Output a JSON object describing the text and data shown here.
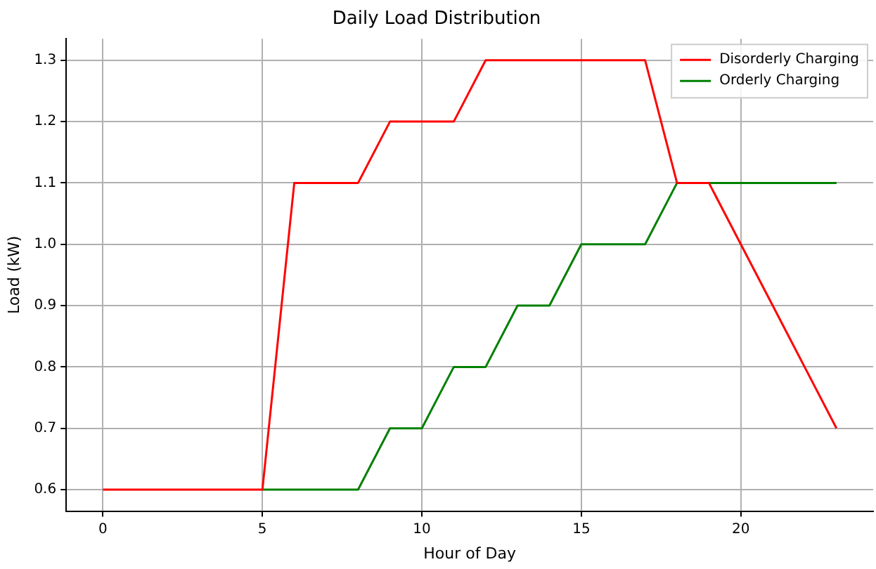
{
  "chart_data": {
    "type": "line",
    "title": "Daily Load Distribution",
    "xlabel": "Hour of Day",
    "ylabel": "Load (kW)",
    "x": [
      0,
      1,
      2,
      3,
      4,
      5,
      6,
      7,
      8,
      9,
      10,
      11,
      12,
      13,
      14,
      15,
      16,
      17,
      18,
      19,
      20,
      21,
      22,
      23
    ],
    "series": [
      {
        "name": "Disorderly Charging",
        "color": "#ff0000",
        "values": [
          0.6,
          0.6,
          0.6,
          0.6,
          0.6,
          0.6,
          1.1,
          1.1,
          1.1,
          1.2,
          1.2,
          1.2,
          1.3,
          1.3,
          1.3,
          1.3,
          1.3,
          1.3,
          1.1,
          1.1,
          1.0,
          0.9,
          0.8,
          0.7
        ]
      },
      {
        "name": "Orderly Charging",
        "color": "#008000",
        "values": [
          null,
          null,
          null,
          null,
          null,
          0.6,
          0.6,
          0.6,
          0.6,
          0.7,
          0.7,
          0.8,
          0.8,
          0.9,
          0.9,
          1.0,
          1.0,
          1.0,
          1.1,
          1.1,
          1.1,
          1.1,
          1.1,
          1.1
        ]
      }
    ],
    "xlim": [
      -1.15,
      24.15
    ],
    "ylim": [
      0.565,
      1.335
    ],
    "xticks": [
      0,
      5,
      10,
      15,
      20
    ],
    "yticks": [
      {
        "value": 0.6,
        "label": "0.6"
      },
      {
        "value": 0.7,
        "label": "0.7"
      },
      {
        "value": 0.8,
        "label": "0.8"
      },
      {
        "value": 0.9,
        "label": "0.9"
      },
      {
        "value": 1.0,
        "label": "1.0"
      },
      {
        "value": 1.1,
        "label": "1.1"
      },
      {
        "value": 1.2,
        "label": "1.2"
      },
      {
        "value": 1.3,
        "label": "1.3"
      }
    ],
    "grid": true,
    "legend": "top right",
    "marker": "none",
    "line_style": "solid"
  }
}
